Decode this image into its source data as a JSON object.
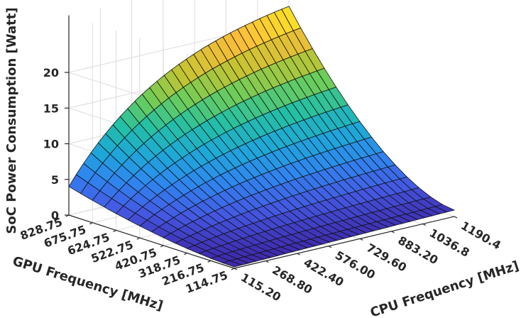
{
  "chart_data": {
    "type": "surface",
    "title": "",
    "xlabel": "CPU Frequency [MHz]",
    "ylabel": "GPU Frequency [MHz]",
    "zlabel": "SoC Power Consumption [Watt]",
    "x_ticks": [
      "115.20",
      "268.80",
      "422.40",
      "576.00",
      "729.60",
      "883.20",
      "1036.8",
      "1190.4"
    ],
    "y_ticks": [
      "114.75",
      "216.75",
      "318.75",
      "420.75",
      "522.75",
      "624.75",
      "675.75",
      "828.75"
    ],
    "z_ticks": [
      "0",
      "5",
      "10",
      "15",
      "20"
    ],
    "zlim": [
      0,
      20
    ],
    "grid": true,
    "colormap": "parula",
    "colormap_stops": [
      "#3e26a8",
      "#4458e3",
      "#2f86f0",
      "#1ea8d8",
      "#23bfa6",
      "#6ccd5a",
      "#c7c331",
      "#fbbd3b",
      "#f9fb15"
    ],
    "x": [
      115.2,
      268.8,
      422.4,
      576.0,
      729.6,
      883.2,
      1036.8,
      1190.4
    ],
    "y": [
      114.75,
      216.75,
      318.75,
      420.75,
      522.75,
      624.75,
      675.75,
      828.75
    ],
    "z_corners": {
      "cpu_min_gpu_min": 0.2,
      "cpu_max_gpu_min": 0.9,
      "cpu_min_gpu_max": 4.0,
      "cpu_max_gpu_max": 22.0
    },
    "ridge_at_gpu_max_by_cpu": [
      4.0,
      7.5,
      11.0,
      14.5,
      17.0,
      18.8,
      20.5,
      22.0
    ],
    "edge_at_cpu_max_by_gpu": [
      0.9,
      2.0,
      3.8,
      6.0,
      9.0,
      12.5,
      15.0,
      22.0
    ]
  }
}
